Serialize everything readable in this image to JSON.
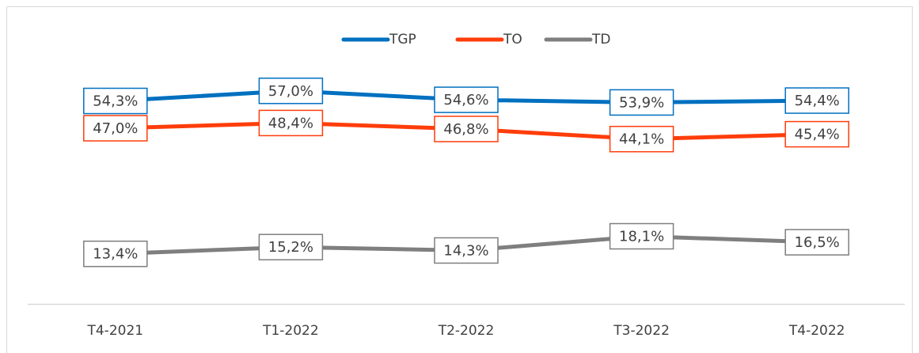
{
  "chart_data": {
    "type": "line",
    "categories": [
      "T4-2021",
      "T1-2022",
      "T2-2022",
      "T3-2022",
      "T4-2022"
    ],
    "series": [
      {
        "name": "TGP",
        "color": "#0070c0",
        "values": [
          54.3,
          57.0,
          54.6,
          53.9,
          54.4
        ],
        "value_labels": [
          "54,3%",
          "57,0%",
          "54,6%",
          "53,9%",
          "54,4%"
        ]
      },
      {
        "name": "TO",
        "color": "#ff3d0a",
        "values": [
          47.0,
          48.4,
          46.8,
          44.1,
          45.4
        ],
        "value_labels": [
          "47,0%",
          "48,4%",
          "46,8%",
          "44,1%",
          "45,4%"
        ]
      },
      {
        "name": "TD",
        "color": "#7f7f7f",
        "values": [
          13.4,
          15.2,
          14.3,
          18.1,
          16.5
        ],
        "value_labels": [
          "13,4%",
          "15,2%",
          "14,3%",
          "18,1%",
          "16,5%"
        ]
      }
    ],
    "ylim": [
      0,
      65
    ],
    "legend": "top"
  }
}
